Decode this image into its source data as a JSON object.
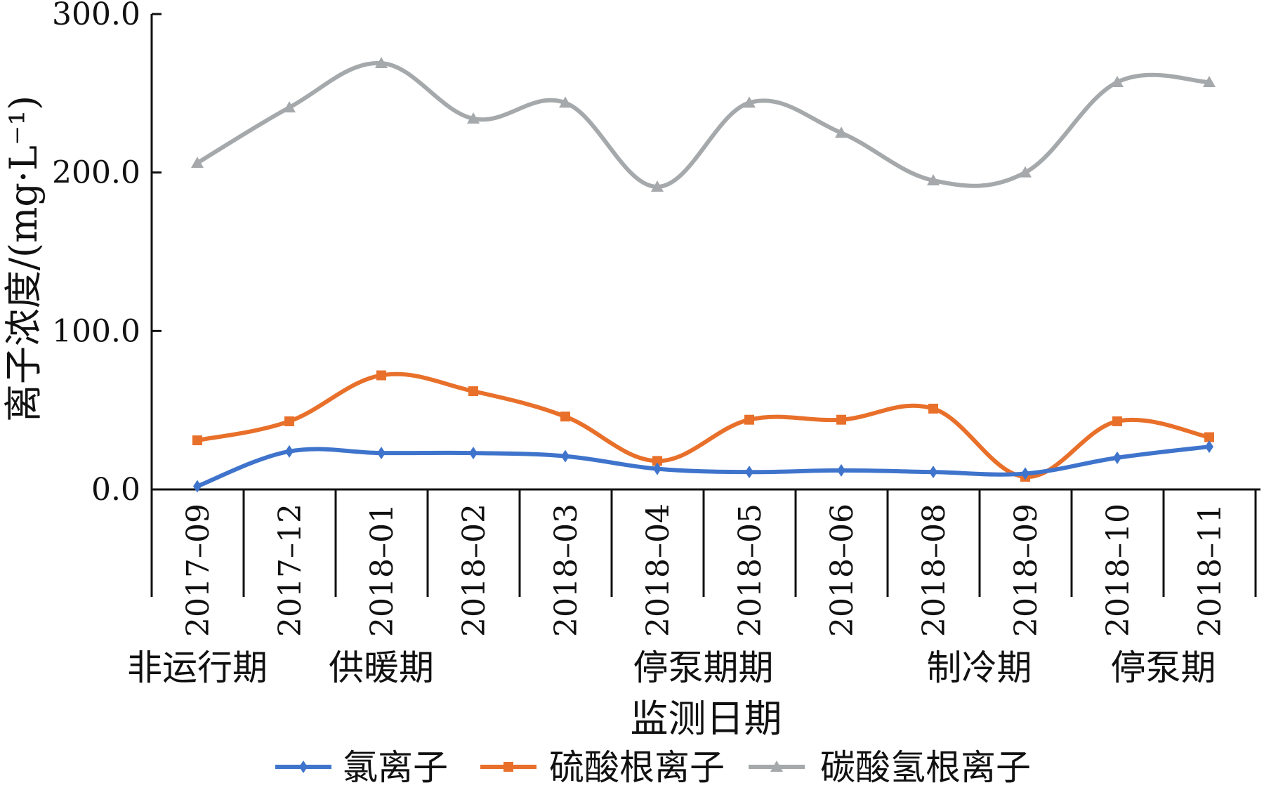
{
  "chart_data": {
    "type": "line",
    "xlabel": "监测日期",
    "ylabel": "离子浓度/(mg·L⁻¹)",
    "ylim": [
      0,
      300
    ],
    "yticks": [
      "0.0",
      "100.0",
      "200.0",
      "300.0"
    ],
    "ytick_values": [
      0,
      100,
      200,
      300
    ],
    "categories": [
      "2017–09",
      "2017–12",
      "2018–01",
      "2018–02",
      "2018–03",
      "2018–04",
      "2018–05",
      "2018–06",
      "2018–08",
      "2018–09",
      "2018–10",
      "2018–11"
    ],
    "periods": [
      {
        "label": "非运行期",
        "center": 0
      },
      {
        "label": "供暖期",
        "center": 2
      },
      {
        "label": "停泵期期",
        "center": 5.5
      },
      {
        "label": "制冷期",
        "center": 8.5
      },
      {
        "label": "停泵期",
        "center": 10.5
      }
    ],
    "legend_position": "bottom",
    "grid": false,
    "series": [
      {
        "name": "氯离子",
        "color": "#3f74cc",
        "marker": "diamond",
        "values": [
          2,
          24,
          23,
          23,
          21,
          13,
          11,
          12,
          11,
          10,
          20,
          27
        ]
      },
      {
        "name": "硫酸根离子",
        "color": "#e8702a",
        "marker": "square",
        "values": [
          31,
          43,
          72,
          62,
          46,
          18,
          44,
          44,
          51,
          8,
          43,
          33
        ]
      },
      {
        "name": "碳酸氢根离子",
        "color": "#a5a9ab",
        "marker": "triangle",
        "values": [
          206,
          241,
          269,
          234,
          244,
          191,
          244,
          225,
          195,
          200,
          257,
          257
        ]
      }
    ]
  }
}
